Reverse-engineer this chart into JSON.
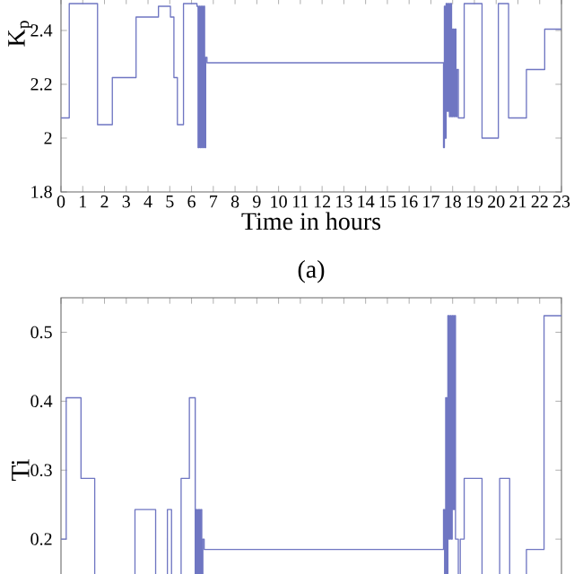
{
  "chart_data": [
    {
      "type": "step",
      "xlabel": "Time in hours",
      "ylabel": "K$_{p}$",
      "annotations": [
        "(a)"
      ],
      "xlim": [
        0,
        23
      ],
      "xticks": [
        0,
        1,
        2,
        3,
        4,
        5,
        6,
        7,
        8,
        9,
        10,
        11,
        12,
        13,
        14,
        15,
        16,
        17,
        18,
        19,
        20,
        21,
        22,
        23
      ],
      "ylim": [
        1.8,
        2.52
      ],
      "yticks": [
        1.8,
        2,
        2.2,
        2.4
      ],
      "series": [
        {
          "color": "#6f76c2",
          "x": [
            0,
            0.38,
            1.68,
            2.36,
            3.45,
            4.48,
            5.03,
            5.19,
            5.35,
            5.63,
            6.25,
            6.3,
            6.35,
            6.4,
            6.45,
            6.5,
            6.55,
            6.6,
            6.65,
            6.71,
            17.58,
            17.62,
            17.66,
            17.7,
            17.75,
            17.8,
            17.85,
            17.9,
            17.95,
            18.0,
            18.05,
            18.1,
            18.15,
            18.2,
            18.26,
            18.53,
            19.35,
            20.1,
            20.57,
            21.39,
            22.23,
            23
          ],
          "values": [
            2.075,
            2.5,
            2.05,
            2.225,
            2.45,
            2.49,
            2.45,
            2.225,
            2.05,
            2.5,
            2.49,
            1.965,
            2.49,
            1.965,
            2.49,
            1.965,
            2.49,
            1.965,
            2.3,
            2.28,
            1.965,
            2.49,
            2.0,
            2.5,
            2.1,
            2.5,
            2.08,
            2.5,
            2.08,
            2.405,
            2.08,
            2.405,
            2.08,
            2.255,
            2.075,
            2.5,
            2.0,
            2.5,
            2.075,
            2.255,
            2.405,
            2.405
          ]
        }
      ]
    },
    {
      "type": "step",
      "ylabel": "Ti",
      "tick_labels": "y",
      "xlim": [
        0,
        23
      ],
      "xticks": [
        0,
        1,
        2,
        3,
        4,
        5,
        6,
        7,
        8,
        9,
        10,
        11,
        12,
        13,
        14,
        15,
        16,
        17,
        18,
        19,
        20,
        21,
        22,
        23
      ],
      "ylim": [
        0.1,
        0.55
      ],
      "yticks": [
        0.2,
        0.3,
        0.4,
        0.5
      ],
      "series": [
        {
          "color": "#6f76c2",
          "x": [
            0,
            0.24,
            0.92,
            1.55,
            3.4,
            4.35,
            4.89,
            5.08,
            5.52,
            5.9,
            6.17,
            6.22,
            6.27,
            6.32,
            6.37,
            6.42,
            6.47,
            6.52,
            6.58,
            17.58,
            17.63,
            17.68,
            17.73,
            17.78,
            17.83,
            17.88,
            17.93,
            17.98,
            18.03,
            18.08,
            18.13,
            18.26,
            18.35,
            18.53,
            19.35,
            20.16,
            20.62,
            21.39,
            22.2,
            23
          ],
          "values": [
            0.2,
            0.405,
            0.288,
            0.12,
            0.243,
            0.12,
            0.243,
            0.12,
            0.288,
            0.405,
            0.12,
            0.243,
            0.13,
            0.243,
            0.13,
            0.243,
            0.13,
            0.2,
            0.185,
            0.243,
            0.13,
            0.405,
            0.15,
            0.524,
            0.2,
            0.524,
            0.2,
            0.524,
            0.243,
            0.524,
            0.2,
            0.13,
            0.2,
            0.288,
            0.12,
            0.288,
            0.12,
            0.185,
            0.524,
            0.524
          ]
        }
      ]
    }
  ]
}
